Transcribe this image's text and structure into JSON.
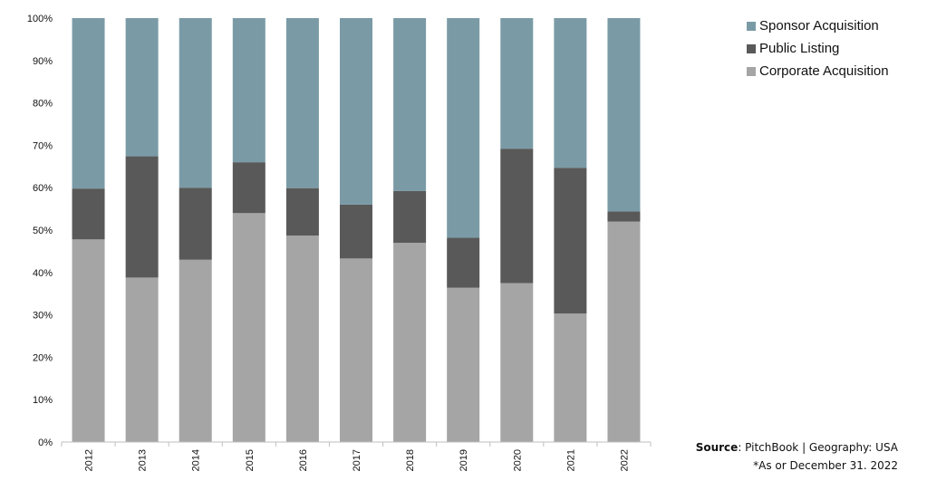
{
  "chart_data": {
    "type": "bar",
    "stacked": true,
    "categories": [
      "2012",
      "2013",
      "2014",
      "2015",
      "2016",
      "2017",
      "2018",
      "2019",
      "2020",
      "2021",
      "2022"
    ],
    "series": [
      {
        "name": "Corporate Acquisition",
        "color": "#a5a5a5",
        "values": [
          47.8,
          38.8,
          43.0,
          54.0,
          48.7,
          43.3,
          47.0,
          36.4,
          37.5,
          30.3,
          52.0
        ]
      },
      {
        "name": "Public Listing",
        "color": "#595959",
        "values": [
          12.0,
          28.6,
          17.0,
          12.0,
          11.2,
          12.7,
          12.2,
          11.8,
          31.7,
          34.4,
          2.4
        ]
      },
      {
        "name": "Sponsor Acquisition",
        "color": "#7a9ba6",
        "values": [
          40.2,
          32.6,
          40.0,
          34.0,
          40.1,
          44.0,
          40.8,
          51.8,
          30.8,
          35.3,
          45.6
        ]
      }
    ],
    "yticks": [
      "0%",
      "10%",
      "20%",
      "30%",
      "40%",
      "50%",
      "60%",
      "70%",
      "80%",
      "90%",
      "100%"
    ],
    "ylim": [
      0,
      100
    ],
    "legend_order": [
      "Sponsor Acquisition",
      "Public Listing",
      "Corporate Acquisition"
    ],
    "legend_position": "top-right"
  },
  "source": {
    "label": "Source",
    "text": ": PitchBook | Geography: USA",
    "note": "*As or December 31. 2022"
  }
}
